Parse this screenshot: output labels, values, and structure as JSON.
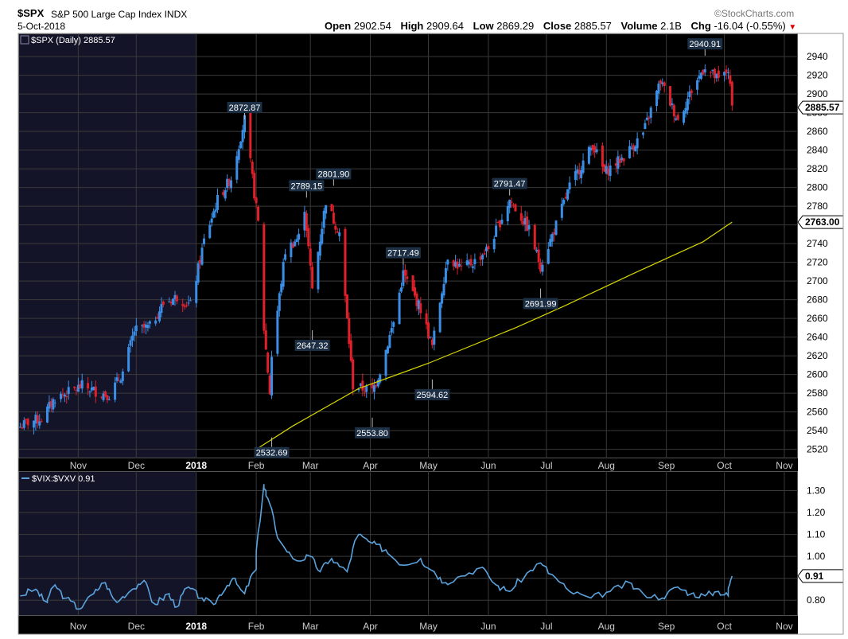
{
  "header": {
    "symbol": "$SPX",
    "name": "S&P 500 Large Cap Index",
    "exchange": "INDX",
    "date": "5-Oct-2018",
    "brand": "©StockCharts.com",
    "open_label": "Open",
    "open": "2902.54",
    "high_label": "High",
    "high": "2909.64",
    "low_label": "Low",
    "low": "2869.29",
    "close_label": "Close",
    "close": "2885.57",
    "volume_label": "Volume",
    "volume": "2.1B",
    "chg_label": "Chg",
    "chg": "-16.04 (-0.55%)"
  },
  "colors": {
    "background": "#000000",
    "shaded": "#141428",
    "grid": "#3a3a3a",
    "up": "#3a8ee6",
    "down": "#e0202a",
    "ma": "#d6d600",
    "vix_line": "#5ba3dd",
    "label_bg": "#1c2f44"
  },
  "chart_data": [
    {
      "type": "candlestick",
      "legend": "$SPX (Daily) 2885.57",
      "y_ticks": [
        2520,
        2540,
        2560,
        2580,
        2600,
        2620,
        2640,
        2660,
        2680,
        2700,
        2720,
        2740,
        2760,
        2780,
        2800,
        2820,
        2840,
        2860,
        2880,
        2900,
        2920,
        2940
      ],
      "ylim": [
        2512,
        2958
      ],
      "x_labels": [
        "Nov",
        "Dec",
        "2018",
        "Feb",
        "Mar",
        "Apr",
        "May",
        "Jun",
        "Jul",
        "Aug",
        "Sep",
        "Oct",
        "Nov"
      ],
      "shaded_until": "2018",
      "last_value": "2885.57",
      "ma_last": "2763.00",
      "close_series": [
        [
          "2017-10-02",
          2544
        ],
        [
          "2017-10-06",
          2549
        ],
        [
          "2017-10-13",
          2553
        ],
        [
          "2017-10-20",
          2575
        ],
        [
          "2017-10-27",
          2581
        ],
        [
          "2017-11-03",
          2588
        ],
        [
          "2017-11-10",
          2582
        ],
        [
          "2017-11-17",
          2578
        ],
        [
          "2017-11-24",
          2602
        ],
        [
          "2017-11-30",
          2647
        ],
        [
          "2017-12-08",
          2651
        ],
        [
          "2017-12-15",
          2676
        ],
        [
          "2017-12-22",
          2683
        ],
        [
          "2017-12-29",
          2674
        ],
        [
          "2018-01-05",
          2743
        ],
        [
          "2018-01-12",
          2787
        ],
        [
          "2018-01-19",
          2810
        ],
        [
          "2018-01-26",
          2873
        ],
        [
          "2018-02-02",
          2762
        ],
        [
          "2018-02-05",
          2649
        ],
        [
          "2018-02-08",
          2581
        ],
        [
          "2018-02-09",
          2620
        ],
        [
          "2018-02-16",
          2732
        ],
        [
          "2018-02-23",
          2747
        ],
        [
          "2018-02-26",
          2779
        ],
        [
          "2018-03-02",
          2691
        ],
        [
          "2018-03-09",
          2786
        ],
        [
          "2018-03-13",
          2765
        ],
        [
          "2018-03-16",
          2752
        ],
        [
          "2018-03-23",
          2588
        ],
        [
          "2018-04-02",
          2582
        ],
        [
          "2018-04-06",
          2604
        ],
        [
          "2018-04-13",
          2656
        ],
        [
          "2018-04-18",
          2708
        ],
        [
          "2018-04-27",
          2670
        ],
        [
          "2018-05-03",
          2630
        ],
        [
          "2018-05-11",
          2727
        ],
        [
          "2018-05-18",
          2713
        ],
        [
          "2018-05-25",
          2721
        ],
        [
          "2018-06-01",
          2735
        ],
        [
          "2018-06-12",
          2787
        ],
        [
          "2018-06-22",
          2755
        ],
        [
          "2018-06-28",
          2716
        ],
        [
          "2018-07-06",
          2760
        ],
        [
          "2018-07-13",
          2801
        ],
        [
          "2018-07-25",
          2846
        ],
        [
          "2018-07-31",
          2816
        ],
        [
          "2018-08-10",
          2833
        ],
        [
          "2018-08-20",
          2858
        ],
        [
          "2018-08-29",
          2914
        ],
        [
          "2018-09-07",
          2872
        ],
        [
          "2018-09-14",
          2904
        ],
        [
          "2018-09-21",
          2930
        ],
        [
          "2018-09-28",
          2914
        ],
        [
          "2018-10-03",
          2926
        ],
        [
          "2018-10-05",
          2886
        ]
      ],
      "ma_series": [
        [
          "2018-02-01",
          2520
        ],
        [
          "2018-02-20",
          2545
        ],
        [
          "2018-03-26",
          2585
        ],
        [
          "2018-05-01",
          2612
        ],
        [
          "2018-06-15",
          2650
        ],
        [
          "2018-07-10",
          2673
        ],
        [
          "2018-08-15",
          2708
        ],
        [
          "2018-09-20",
          2742
        ],
        [
          "2018-10-05",
          2763
        ]
      ],
      "annotations": [
        {
          "date": "2018-01-26",
          "value": 2872.87,
          "label": "2872.87",
          "pos": "above"
        },
        {
          "date": "2018-02-09",
          "value": 2532.69,
          "label": "2532.69",
          "pos": "below"
        },
        {
          "date": "2018-02-27",
          "value": 2789.15,
          "label": "2789.15",
          "pos": "above"
        },
        {
          "date": "2018-03-02",
          "value": 2647.32,
          "label": "2647.32",
          "pos": "below"
        },
        {
          "date": "2018-03-13",
          "value": 2801.9,
          "label": "2801.90",
          "pos": "above"
        },
        {
          "date": "2018-04-02",
          "value": 2553.8,
          "label": "2553.80",
          "pos": "below"
        },
        {
          "date": "2018-04-18",
          "value": 2717.49,
          "label": "2717.49",
          "pos": "above"
        },
        {
          "date": "2018-05-03",
          "value": 2594.62,
          "label": "2594.62",
          "pos": "below"
        },
        {
          "date": "2018-06-12",
          "value": 2791.47,
          "label": "2791.47",
          "pos": "above"
        },
        {
          "date": "2018-06-28",
          "value": 2691.99,
          "label": "2691.99",
          "pos": "below"
        },
        {
          "date": "2018-09-21",
          "value": 2940.91,
          "label": "2940.91",
          "pos": "above"
        }
      ]
    },
    {
      "type": "line",
      "legend": "$VIX:$VXV 0.91",
      "y_ticks": [
        0.8,
        0.9,
        1.0,
        1.1,
        1.2,
        1.3
      ],
      "y_tick_labels": [
        "0.80",
        "0.90",
        "1.00",
        "1.10",
        "1.20",
        "1.30"
      ],
      "ylim": [
        0.75,
        1.36
      ],
      "last_value": "0.91",
      "x_labels": [
        "Nov",
        "Dec",
        "2018",
        "Feb",
        "Mar",
        "Apr",
        "May",
        "Jun",
        "Jul",
        "Aug",
        "Sep",
        "Oct",
        "Nov"
      ],
      "series": [
        [
          "2017-10-02",
          0.82
        ],
        [
          "2017-10-10",
          0.85
        ],
        [
          "2017-10-16",
          0.79
        ],
        [
          "2017-10-20",
          0.87
        ],
        [
          "2017-10-26",
          0.81
        ],
        [
          "2017-11-02",
          0.76
        ],
        [
          "2017-11-09",
          0.83
        ],
        [
          "2017-11-15",
          0.88
        ],
        [
          "2017-11-21",
          0.79
        ],
        [
          "2017-11-29",
          0.85
        ],
        [
          "2017-12-05",
          0.89
        ],
        [
          "2017-12-11",
          0.78
        ],
        [
          "2017-12-18",
          0.83
        ],
        [
          "2017-12-22",
          0.77
        ],
        [
          "2017-12-28",
          0.86
        ],
        [
          "2018-01-04",
          0.81
        ],
        [
          "2018-01-10",
          0.78
        ],
        [
          "2018-01-16",
          0.85
        ],
        [
          "2018-01-20",
          0.9
        ],
        [
          "2018-01-26",
          0.83
        ],
        [
          "2018-02-01",
          0.94
        ],
        [
          "2018-02-05",
          1.33
        ],
        [
          "2018-02-08",
          1.24
        ],
        [
          "2018-02-14",
          1.06
        ],
        [
          "2018-02-22",
          0.98
        ],
        [
          "2018-03-01",
          1.0
        ],
        [
          "2018-03-06",
          0.93
        ],
        [
          "2018-03-12",
          0.99
        ],
        [
          "2018-03-20",
          0.93
        ],
        [
          "2018-03-26",
          1.1
        ],
        [
          "2018-04-02",
          1.06
        ],
        [
          "2018-04-09",
          1.03
        ],
        [
          "2018-04-18",
          0.96
        ],
        [
          "2018-04-27",
          0.99
        ],
        [
          "2018-05-04",
          0.93
        ],
        [
          "2018-05-10",
          0.88
        ],
        [
          "2018-05-18",
          0.91
        ],
        [
          "2018-05-29",
          0.95
        ],
        [
          "2018-06-05",
          0.87
        ],
        [
          "2018-06-12",
          0.84
        ],
        [
          "2018-06-20",
          0.91
        ],
        [
          "2018-06-28",
          0.97
        ],
        [
          "2018-07-06",
          0.9
        ],
        [
          "2018-07-13",
          0.84
        ],
        [
          "2018-07-24",
          0.81
        ],
        [
          "2018-08-03",
          0.84
        ],
        [
          "2018-08-13",
          0.88
        ],
        [
          "2018-08-20",
          0.83
        ],
        [
          "2018-08-30",
          0.81
        ],
        [
          "2018-09-07",
          0.86
        ],
        [
          "2018-09-14",
          0.83
        ],
        [
          "2018-09-21",
          0.82
        ],
        [
          "2018-09-28",
          0.84
        ],
        [
          "2018-10-03",
          0.82
        ],
        [
          "2018-10-05",
          0.91
        ]
      ]
    }
  ]
}
